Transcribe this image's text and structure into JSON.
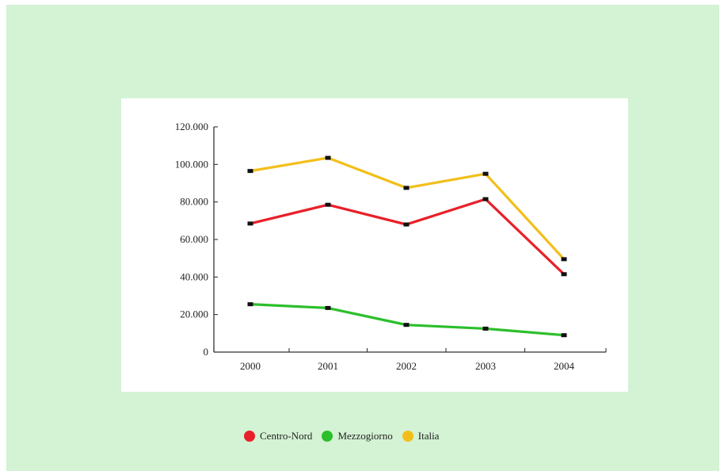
{
  "chart_data": {
    "type": "line",
    "categories": [
      "2000",
      "2001",
      "2002",
      "2003",
      "2004"
    ],
    "series": [
      {
        "name": "Centro-Nord",
        "color": "#e8202a",
        "values": [
          68500,
          78500,
          68000,
          81500,
          41500
        ]
      },
      {
        "name": "Mezzogiorno",
        "color": "#2bbf2b",
        "values": [
          25500,
          23500,
          14500,
          12500,
          9000
        ]
      },
      {
        "name": "Italia",
        "color": "#f2bf1a",
        "values": [
          96500,
          103500,
          87500,
          95000,
          49500
        ]
      }
    ],
    "ylim": [
      0,
      120000
    ],
    "yticks": [
      0,
      20000,
      40000,
      60000,
      80000,
      100000,
      120000
    ],
    "ytick_labels": [
      "0",
      "20.000",
      "40.000",
      "60.000",
      "80.000",
      "100.000",
      "120.000"
    ],
    "grid": false,
    "legend_position": "bottom-center"
  }
}
